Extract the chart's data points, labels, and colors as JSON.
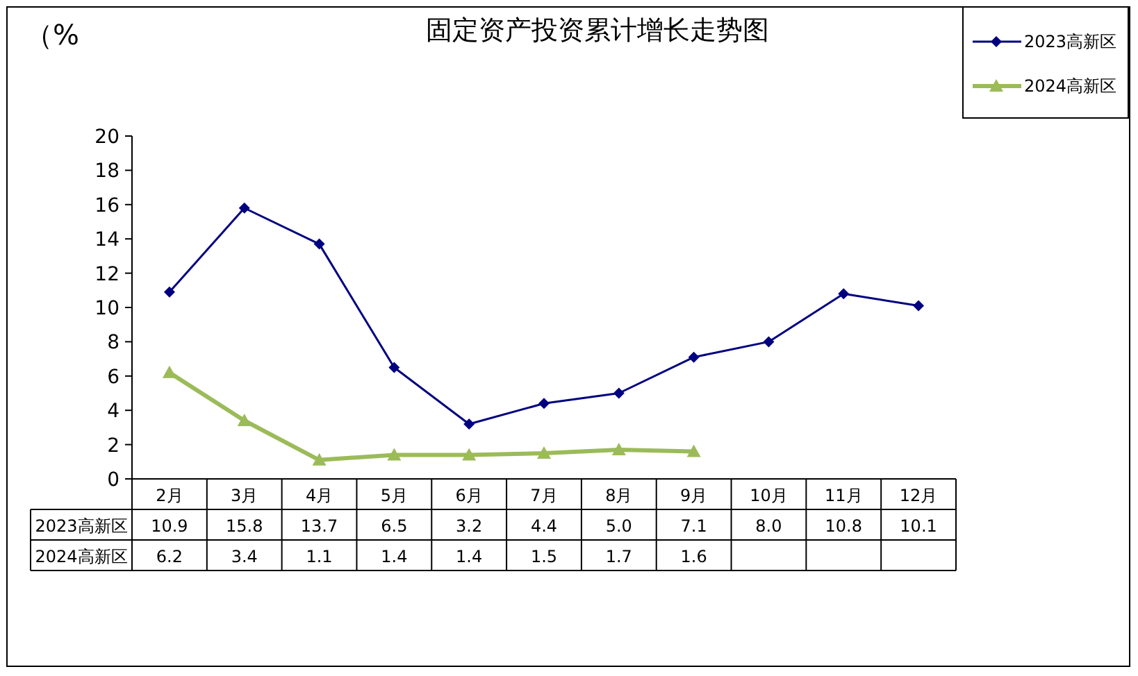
{
  "chart_data": {
    "type": "line",
    "title": "固定资产投资累计增长走势图",
    "ylabel": "（%",
    "categories": [
      "2月",
      "3月",
      "4月",
      "5月",
      "6月",
      "7月",
      "8月",
      "9月",
      "10月",
      "11月",
      "12月"
    ],
    "series": [
      {
        "name": "2023高新区",
        "color": "#000080",
        "marker": "diamond",
        "values": [
          10.9,
          15.8,
          13.7,
          6.5,
          3.2,
          4.4,
          5.0,
          7.1,
          8.0,
          10.8,
          10.1
        ],
        "value_labels": [
          "10.9",
          "15.8",
          "13.7",
          "6.5",
          "3.2",
          "4.4",
          "5.0",
          "7.1",
          "8.0",
          "10.8",
          "10.1"
        ]
      },
      {
        "name": "2024高新区",
        "color": "#9bbb59",
        "marker": "triangle",
        "values": [
          6.2,
          3.4,
          1.1,
          1.4,
          1.4,
          1.5,
          1.7,
          1.6,
          null,
          null,
          null
        ],
        "value_labels": [
          "6.2",
          "3.4",
          "1.1",
          "1.4",
          "1.4",
          "1.5",
          "1.7",
          "1.6",
          null,
          null,
          null
        ]
      }
    ],
    "ylim": [
      0,
      20
    ],
    "yticks": [
      0,
      2,
      4,
      6,
      8,
      10,
      12,
      14,
      16,
      18,
      20
    ],
    "legend": "top right",
    "grid": false
  }
}
